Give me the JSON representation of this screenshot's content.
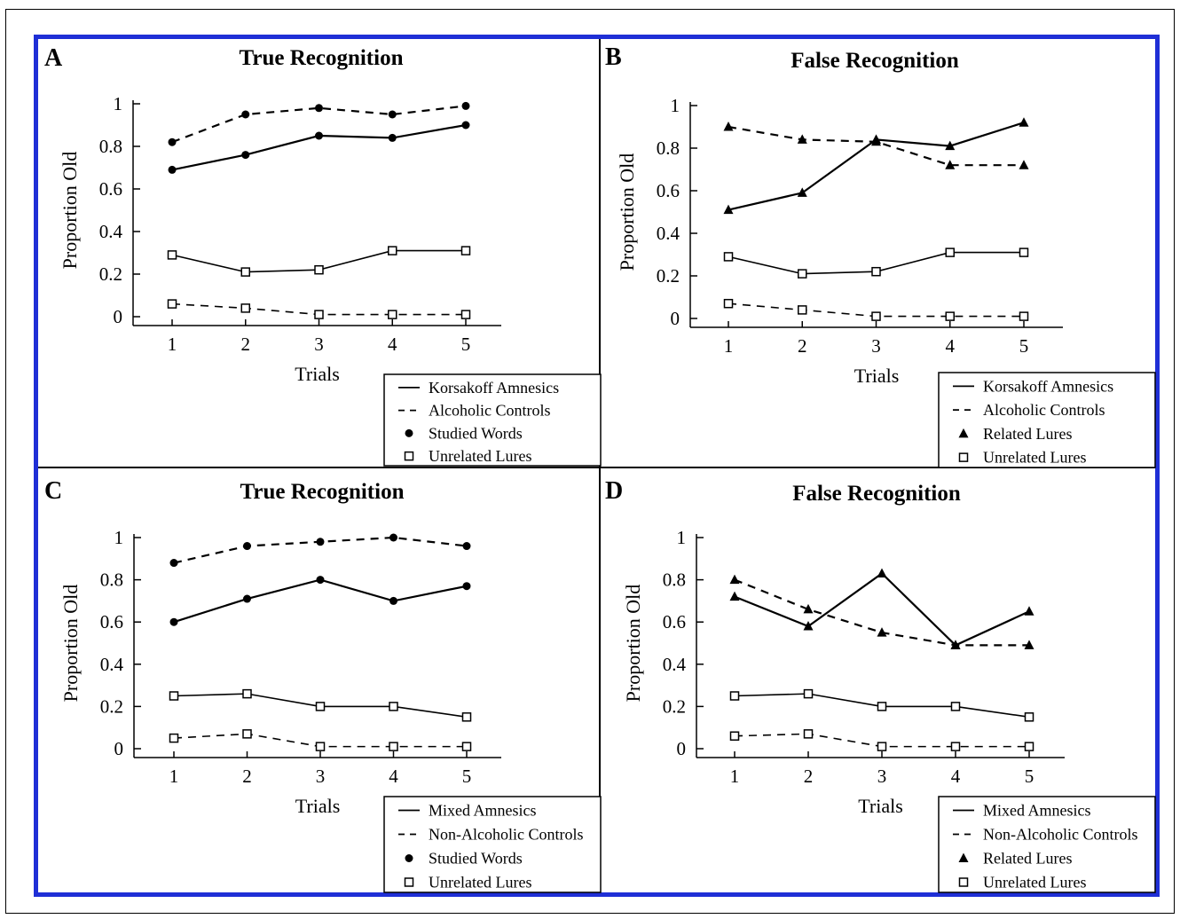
{
  "figure": {
    "frame_color": "#1f2fd6"
  },
  "chart_data": [
    {
      "type": "line",
      "panel_letter": "A",
      "title": "True Recognition",
      "xlabel": "Trials",
      "ylabel": "Proportion Old",
      "x": [
        1,
        2,
        3,
        4,
        5
      ],
      "xticks": [
        "1",
        "2",
        "3",
        "4",
        "5"
      ],
      "yticks": [
        "0",
        "0.2",
        "0.4",
        "0.6",
        "0.8",
        "1"
      ],
      "ylim": [
        0,
        1
      ],
      "legend_position": "bottom-right",
      "legend": [
        {
          "symbol": "solid-line",
          "label": "Korsakoff Amnesics"
        },
        {
          "symbol": "dashed-line",
          "label": "Alcoholic Controls"
        },
        {
          "symbol": "filled-circle",
          "label": "Studied Words"
        },
        {
          "symbol": "open-square",
          "label": "Unrelated Lures"
        }
      ],
      "series": [
        {
          "group": "Korsakoff Amnesics",
          "item": "Studied Words",
          "line": "solid",
          "marker": "filled-circle",
          "values": [
            0.69,
            0.76,
            0.85,
            0.84,
            0.9
          ]
        },
        {
          "group": "Alcoholic Controls",
          "item": "Studied Words",
          "line": "dashed",
          "marker": "filled-circle",
          "values": [
            0.82,
            0.95,
            0.98,
            0.95,
            0.99
          ]
        },
        {
          "group": "Korsakoff Amnesics",
          "item": "Unrelated Lures",
          "line": "solid",
          "marker": "open-square",
          "values": [
            0.29,
            0.21,
            0.22,
            0.31,
            0.31
          ]
        },
        {
          "group": "Alcoholic Controls",
          "item": "Unrelated Lures",
          "line": "dashed",
          "marker": "open-square",
          "values": [
            0.06,
            0.04,
            0.01,
            0.01,
            0.01
          ]
        }
      ]
    },
    {
      "type": "line",
      "panel_letter": "B",
      "title": "False Recognition",
      "xlabel": "Trials",
      "ylabel": "Proportion Old",
      "x": [
        1,
        2,
        3,
        4,
        5
      ],
      "xticks": [
        "1",
        "2",
        "3",
        "4",
        "5"
      ],
      "yticks": [
        "0",
        "0.2",
        "0.4",
        "0.6",
        "0.8",
        "1"
      ],
      "ylim": [
        0,
        1
      ],
      "legend_position": "bottom-right",
      "legend": [
        {
          "symbol": "solid-line",
          "label": "Korsakoff Amnesics"
        },
        {
          "symbol": "dashed-line",
          "label": "Alcoholic Controls"
        },
        {
          "symbol": "filled-triangle",
          "label": "Related Lures"
        },
        {
          "symbol": "open-square",
          "label": "Unrelated Lures"
        }
      ],
      "series": [
        {
          "group": "Korsakoff Amnesics",
          "item": "Related Lures",
          "line": "solid",
          "marker": "filled-triangle",
          "values": [
            0.51,
            0.59,
            0.84,
            0.81,
            0.92
          ]
        },
        {
          "group": "Alcoholic Controls",
          "item": "Related Lures",
          "line": "dashed",
          "marker": "filled-triangle",
          "values": [
            0.9,
            0.84,
            0.83,
            0.72,
            0.72
          ]
        },
        {
          "group": "Korsakoff Amnesics",
          "item": "Unrelated Lures",
          "line": "solid",
          "marker": "open-square",
          "values": [
            0.29,
            0.21,
            0.22,
            0.31,
            0.31
          ]
        },
        {
          "group": "Alcoholic Controls",
          "item": "Unrelated Lures",
          "line": "dashed",
          "marker": "open-square",
          "values": [
            0.07,
            0.04,
            0.01,
            0.01,
            0.01
          ]
        }
      ]
    },
    {
      "type": "line",
      "panel_letter": "C",
      "title": "True Recognition",
      "xlabel": "Trials",
      "ylabel": "Proportion Old",
      "x": [
        1,
        2,
        3,
        4,
        5
      ],
      "xticks": [
        "1",
        "2",
        "3",
        "4",
        "5"
      ],
      "yticks": [
        "0",
        "0.2",
        "0.4",
        "0.6",
        "0.8",
        "1"
      ],
      "ylim": [
        0,
        1
      ],
      "legend_position": "bottom-right",
      "legend": [
        {
          "symbol": "solid-line",
          "label": "Mixed Amnesics"
        },
        {
          "symbol": "dashed-line",
          "label": "Non-Alcoholic Controls"
        },
        {
          "symbol": "filled-circle",
          "label": "Studied Words"
        },
        {
          "symbol": "open-square",
          "label": "Unrelated Lures"
        }
      ],
      "series": [
        {
          "group": "Mixed Amnesics",
          "item": "Studied Words",
          "line": "solid",
          "marker": "filled-circle",
          "values": [
            0.6,
            0.71,
            0.8,
            0.7,
            0.77
          ]
        },
        {
          "group": "Non-Alcoholic Controls",
          "item": "Studied Words",
          "line": "dashed",
          "marker": "filled-circle",
          "values": [
            0.88,
            0.96,
            0.98,
            1.0,
            0.96
          ]
        },
        {
          "group": "Mixed Amnesics",
          "item": "Unrelated Lures",
          "line": "solid",
          "marker": "open-square",
          "values": [
            0.25,
            0.26,
            0.2,
            0.2,
            0.15
          ]
        },
        {
          "group": "Non-Alcoholic Controls",
          "item": "Unrelated Lures",
          "line": "dashed",
          "marker": "open-square",
          "values": [
            0.05,
            0.07,
            0.01,
            0.01,
            0.01
          ]
        }
      ]
    },
    {
      "type": "line",
      "panel_letter": "D",
      "title": "False Recognition",
      "xlabel": "Trials",
      "ylabel": "Proportion Old",
      "x": [
        1,
        2,
        3,
        4,
        5
      ],
      "xticks": [
        "1",
        "2",
        "3",
        "4",
        "5"
      ],
      "yticks": [
        "0",
        "0.2",
        "0.4",
        "0.6",
        "0.8",
        "1"
      ],
      "ylim": [
        0,
        1
      ],
      "legend_position": "bottom-right",
      "legend": [
        {
          "symbol": "solid-line",
          "label": "Mixed Amnesics"
        },
        {
          "symbol": "dashed-line",
          "label": "Non-Alcoholic Controls"
        },
        {
          "symbol": "filled-triangle",
          "label": "Related Lures"
        },
        {
          "symbol": "open-square",
          "label": "Unrelated Lures"
        }
      ],
      "series": [
        {
          "group": "Mixed Amnesics",
          "item": "Related Lures",
          "line": "solid",
          "marker": "filled-triangle",
          "values": [
            0.72,
            0.58,
            0.83,
            0.49,
            0.65
          ]
        },
        {
          "group": "Non-Alcoholic Controls",
          "item": "Related Lures",
          "line": "dashed",
          "marker": "filled-triangle",
          "values": [
            0.8,
            0.66,
            0.55,
            0.49,
            0.49
          ]
        },
        {
          "group": "Mixed Amnesics",
          "item": "Unrelated Lures",
          "line": "solid",
          "marker": "open-square",
          "values": [
            0.25,
            0.26,
            0.2,
            0.2,
            0.15
          ]
        },
        {
          "group": "Non-Alcoholic Controls",
          "item": "Unrelated Lures",
          "line": "dashed",
          "marker": "open-square",
          "values": [
            0.06,
            0.07,
            0.01,
            0.01,
            0.01
          ]
        }
      ]
    }
  ]
}
